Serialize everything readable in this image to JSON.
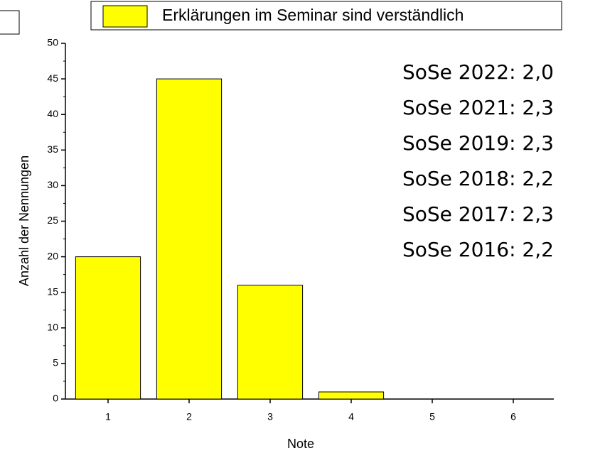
{
  "chart_data": {
    "type": "bar",
    "categories": [
      "1",
      "2",
      "3",
      "4",
      "5",
      "6"
    ],
    "series": [
      {
        "name": "Erklärungen im Seminar sind verständlich",
        "color": "#ffff00",
        "values": [
          20,
          45,
          16,
          1,
          0,
          0
        ]
      }
    ],
    "xlabel": "Note",
    "ylabel": "Anzahl der Nennungen",
    "ylim": [
      0,
      50
    ],
    "yticks": [
      0,
      5,
      10,
      15,
      20,
      25,
      30,
      35,
      40,
      45,
      50
    ],
    "grid": false,
    "legend": "top",
    "annotations": [
      {
        "text": "SoSe 2022: 2,0",
        "color": "#1ea4e0"
      },
      {
        "text": "SoSe 2021: 2,3",
        "color": "#000000"
      },
      {
        "text": "SoSe 2019: 2,3",
        "color": "#000000"
      },
      {
        "text": "SoSe 2018: 2,2",
        "color": "#000000"
      },
      {
        "text": "SoSe 2017: 2,3",
        "color": "#000000"
      },
      {
        "text": "SoSe 2016: 2,2",
        "color": "#000000"
      }
    ]
  }
}
